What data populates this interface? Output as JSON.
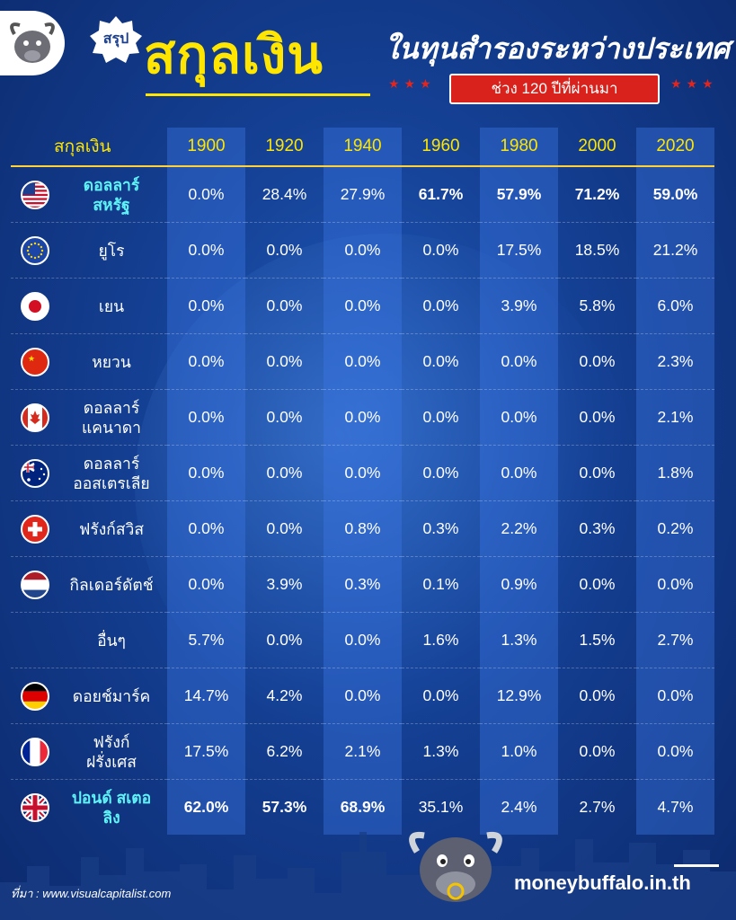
{
  "header": {
    "badge": "สรุป",
    "title": "สกุลเงิน",
    "subtitle": "ในทุนสำรองระหว่างประเทศ",
    "period": "ช่วง 120 ปีที่ผ่านมา"
  },
  "footer": {
    "source": "ที่มา : www.visualcapitalist.com",
    "brand": "moneybuffalo.in.th"
  },
  "colors": {
    "highlight": "#5ff3f7",
    "year_header": "#ffe600",
    "background": "#143f92"
  },
  "chart_data": {
    "type": "table",
    "column_header": "สกุลเงิน",
    "years": [
      "1900",
      "1920",
      "1940",
      "1960",
      "1980",
      "2000",
      "2020"
    ],
    "rows": [
      {
        "currency": "ดอลลาร์ สหรัฐ",
        "flag": "usa-flag-icon",
        "values": [
          "0.0%",
          "28.4%",
          "27.9%",
          "61.7%",
          "57.9%",
          "71.2%",
          "59.0%"
        ],
        "highlighted": [
          false,
          false,
          false,
          true,
          true,
          true,
          true
        ],
        "name_highlighted": true
      },
      {
        "currency": "ยูโร",
        "flag": "eu-flag-icon",
        "values": [
          "0.0%",
          "0.0%",
          "0.0%",
          "0.0%",
          "17.5%",
          "18.5%",
          "21.2%"
        ],
        "highlighted": [
          false,
          false,
          false,
          false,
          false,
          false,
          false
        ],
        "name_highlighted": false
      },
      {
        "currency": "เยน",
        "flag": "japan-flag-icon",
        "values": [
          "0.0%",
          "0.0%",
          "0.0%",
          "0.0%",
          "3.9%",
          "5.8%",
          "6.0%"
        ],
        "highlighted": [
          false,
          false,
          false,
          false,
          false,
          false,
          false
        ],
        "name_highlighted": false
      },
      {
        "currency": "หยวน",
        "flag": "china-flag-icon",
        "values": [
          "0.0%",
          "0.0%",
          "0.0%",
          "0.0%",
          "0.0%",
          "0.0%",
          "2.3%"
        ],
        "highlighted": [
          false,
          false,
          false,
          false,
          false,
          false,
          false
        ],
        "name_highlighted": false
      },
      {
        "currency": "ดอลลาร์ แคนาดา",
        "flag": "canada-flag-icon",
        "values": [
          "0.0%",
          "0.0%",
          "0.0%",
          "0.0%",
          "0.0%",
          "0.0%",
          "2.1%"
        ],
        "highlighted": [
          false,
          false,
          false,
          false,
          false,
          false,
          false
        ],
        "name_highlighted": false
      },
      {
        "currency": "ดอลลาร์ ออสเตรเลีย",
        "flag": "australia-flag-icon",
        "values": [
          "0.0%",
          "0.0%",
          "0.0%",
          "0.0%",
          "0.0%",
          "0.0%",
          "1.8%"
        ],
        "highlighted": [
          false,
          false,
          false,
          false,
          false,
          false,
          false
        ],
        "name_highlighted": false
      },
      {
        "currency": "ฟรังก์สวิส",
        "flag": "switzerland-flag-icon",
        "values": [
          "0.0%",
          "0.0%",
          "0.8%",
          "0.3%",
          "2.2%",
          "0.3%",
          "0.2%"
        ],
        "highlighted": [
          false,
          false,
          false,
          false,
          false,
          false,
          false
        ],
        "name_highlighted": false
      },
      {
        "currency": "กิลเดอร์ดัตช์",
        "flag": "netherlands-flag-icon",
        "values": [
          "0.0%",
          "3.9%",
          "0.3%",
          "0.1%",
          "0.9%",
          "0.0%",
          "0.0%"
        ],
        "highlighted": [
          false,
          false,
          false,
          false,
          false,
          false,
          false
        ],
        "name_highlighted": false
      },
      {
        "currency": "อื่นๆ",
        "flag": "",
        "values": [
          "5.7%",
          "0.0%",
          "0.0%",
          "1.6%",
          "1.3%",
          "1.5%",
          "2.7%"
        ],
        "highlighted": [
          false,
          false,
          false,
          false,
          false,
          false,
          false
        ],
        "name_highlighted": false
      },
      {
        "currency": "ดอยช์มาร์ค",
        "flag": "germany-flag-icon",
        "values": [
          "14.7%",
          "4.2%",
          "0.0%",
          "0.0%",
          "12.9%",
          "0.0%",
          "0.0%"
        ],
        "highlighted": [
          false,
          false,
          false,
          false,
          false,
          false,
          false
        ],
        "name_highlighted": false
      },
      {
        "currency": "ฟรังก์ ฝรั่งเศส",
        "flag": "france-flag-icon",
        "values": [
          "17.5%",
          "6.2%",
          "2.1%",
          "1.3%",
          "1.0%",
          "0.0%",
          "0.0%"
        ],
        "highlighted": [
          false,
          false,
          false,
          false,
          false,
          false,
          false
        ],
        "name_highlighted": false
      },
      {
        "currency": "ปอนด์ สเตอลิง",
        "flag": "uk-flag-icon",
        "values": [
          "62.0%",
          "57.3%",
          "68.9%",
          "35.1%",
          "2.4%",
          "2.7%",
          "4.7%"
        ],
        "highlighted": [
          true,
          true,
          true,
          false,
          false,
          false,
          false
        ],
        "name_highlighted": true
      }
    ]
  }
}
